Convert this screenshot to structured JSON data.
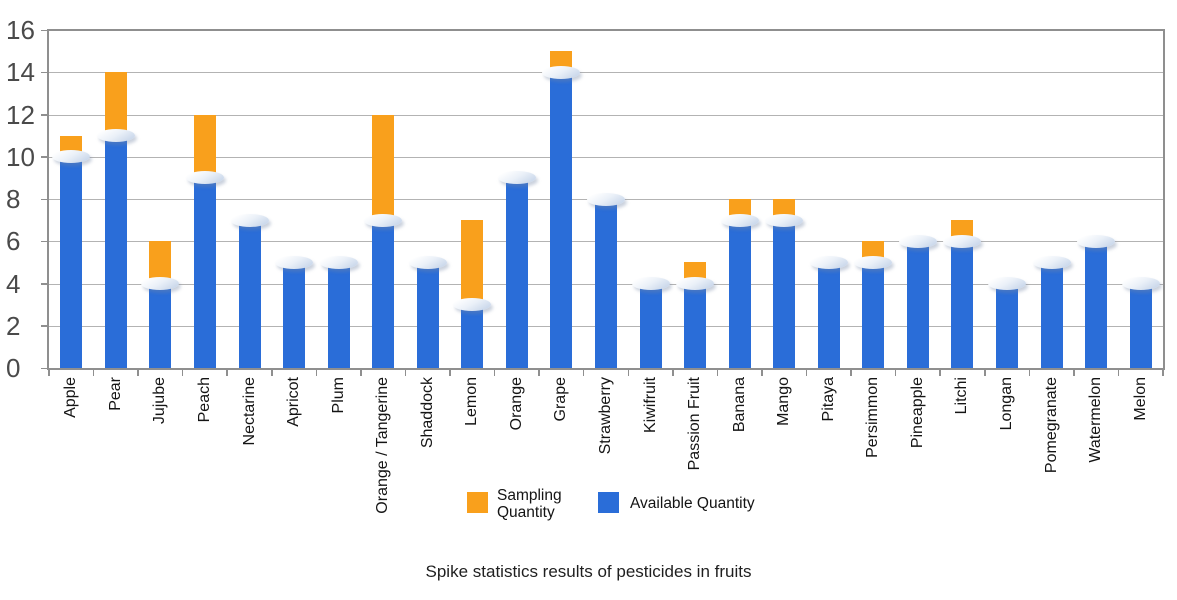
{
  "title": "Spike statistics results of pesticides in fruits",
  "y_axis": {
    "ticks": [
      0,
      2,
      4,
      6,
      8,
      10,
      12,
      14,
      16
    ],
    "min": 0,
    "max": 16
  },
  "legend": {
    "items": [
      {
        "label": "Sampling Quantity",
        "color": "#F9A01C"
      },
      {
        "label": "Available Quantity",
        "color": "#2A6DD8"
      }
    ]
  },
  "chart_data": {
    "type": "bar",
    "title": "Spike statistics results of pesticides in fruits",
    "categories": [
      "Apple",
      "Pear",
      "Jujube",
      "Peach",
      "Nectarine",
      "Apricot",
      "Plum",
      "Orange / Tangerine",
      "Shaddock",
      "Lemon",
      "Orange",
      "Grape",
      "Strawberry",
      "Kiwifruit",
      "Passion Fruit",
      "Banana",
      "Mango",
      "Pitaya",
      "Persimmon",
      "Pineapple",
      "Litchi",
      "Longan",
      "Pomegranate",
      "Watermelon",
      "Melon"
    ],
    "series": [
      {
        "name": "Available Quantity",
        "color": "#2A6DD8",
        "values": [
          10,
          11,
          4,
          9,
          7,
          5,
          5,
          7,
          5,
          3,
          9,
          14,
          8,
          4,
          4,
          7,
          7,
          5,
          5,
          6,
          6,
          4,
          5,
          6,
          4
        ]
      },
      {
        "name": "Sampling Quantity",
        "color": "#F9A01C",
        "values": [
          11,
          14,
          6,
          12,
          7,
          5,
          5,
          12,
          5,
          7,
          9,
          15,
          8,
          4,
          5,
          8,
          8,
          5,
          6,
          6,
          7,
          4,
          5,
          6,
          4
        ],
        "rendering": "orange tip drawn from Available value up to Sampling value"
      }
    ],
    "ylim": [
      0,
      16
    ],
    "grid": true,
    "legend_position": "bottom",
    "bar_cap_style": "glossy-pill"
  }
}
